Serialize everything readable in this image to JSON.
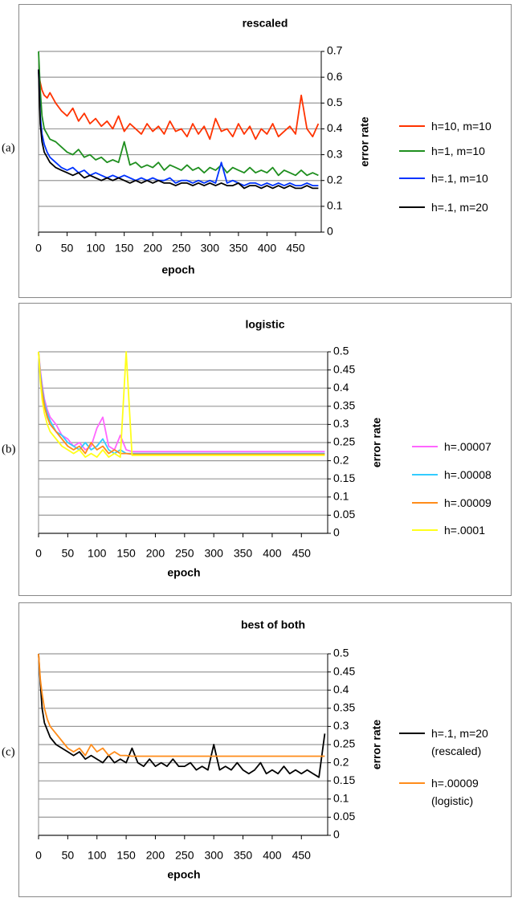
{
  "chart_data": [
    {
      "type": "line",
      "panel_label": "(a)",
      "title": "rescaled",
      "x_label": "epoch",
      "y_label": "error rate",
      "x": [
        0,
        3,
        6,
        10,
        15,
        20,
        30,
        40,
        50,
        60,
        70,
        80,
        90,
        100,
        110,
        120,
        130,
        140,
        150,
        160,
        170,
        180,
        190,
        200,
        210,
        220,
        230,
        240,
        250,
        260,
        270,
        280,
        290,
        300,
        310,
        320,
        330,
        340,
        350,
        360,
        370,
        380,
        390,
        400,
        410,
        420,
        430,
        440,
        450,
        460,
        470,
        480,
        490
      ],
      "xlim": [
        0,
        495
      ],
      "xticks": [
        0,
        50,
        100,
        150,
        200,
        250,
        300,
        350,
        400,
        450
      ],
      "ylim": [
        0,
        0.7
      ],
      "yticks": [
        0,
        0.1,
        0.2,
        0.3,
        0.4,
        0.5,
        0.6,
        0.7
      ],
      "grid": true,
      "series": [
        {
          "name": "h=10, m=10",
          "color": "#ff3300",
          "values": [
            0.62,
            0.58,
            0.55,
            0.53,
            0.52,
            0.54,
            0.5,
            0.47,
            0.45,
            0.48,
            0.43,
            0.46,
            0.42,
            0.44,
            0.41,
            0.43,
            0.4,
            0.45,
            0.39,
            0.42,
            0.4,
            0.38,
            0.42,
            0.39,
            0.41,
            0.38,
            0.43,
            0.39,
            0.4,
            0.37,
            0.42,
            0.38,
            0.41,
            0.36,
            0.44,
            0.39,
            0.4,
            0.37,
            0.42,
            0.38,
            0.41,
            0.36,
            0.4,
            0.38,
            0.42,
            0.37,
            0.39,
            0.41,
            0.38,
            0.53,
            0.4,
            0.37,
            0.42
          ]
        },
        {
          "name": "h=1, m=10",
          "color": "#1f8f1f",
          "values": [
            0.7,
            0.55,
            0.45,
            0.4,
            0.38,
            0.36,
            0.35,
            0.33,
            0.31,
            0.3,
            0.32,
            0.29,
            0.3,
            0.28,
            0.29,
            0.27,
            0.28,
            0.27,
            0.35,
            0.26,
            0.27,
            0.25,
            0.26,
            0.25,
            0.27,
            0.24,
            0.26,
            0.25,
            0.24,
            0.26,
            0.24,
            0.25,
            0.23,
            0.25,
            0.24,
            0.26,
            0.23,
            0.25,
            0.24,
            0.23,
            0.25,
            0.23,
            0.24,
            0.23,
            0.25,
            0.22,
            0.24,
            0.23,
            0.22,
            0.24,
            0.22,
            0.23,
            0.22
          ]
        },
        {
          "name": "h=.1, m=10",
          "color": "#0033ff",
          "values": [
            0.63,
            0.45,
            0.38,
            0.34,
            0.31,
            0.29,
            0.27,
            0.25,
            0.24,
            0.25,
            0.23,
            0.24,
            0.22,
            0.23,
            0.22,
            0.21,
            0.22,
            0.21,
            0.22,
            0.21,
            0.2,
            0.21,
            0.2,
            0.21,
            0.2,
            0.2,
            0.21,
            0.19,
            0.2,
            0.2,
            0.19,
            0.2,
            0.19,
            0.2,
            0.19,
            0.27,
            0.19,
            0.2,
            0.19,
            0.18,
            0.19,
            0.19,
            0.18,
            0.19,
            0.18,
            0.19,
            0.18,
            0.19,
            0.18,
            0.18,
            0.19,
            0.18,
            0.18
          ]
        },
        {
          "name": "h=.1, m=20",
          "color": "#000000",
          "values": [
            0.63,
            0.42,
            0.35,
            0.31,
            0.29,
            0.27,
            0.25,
            0.24,
            0.23,
            0.22,
            0.23,
            0.21,
            0.22,
            0.21,
            0.2,
            0.21,
            0.2,
            0.21,
            0.2,
            0.19,
            0.2,
            0.19,
            0.2,
            0.19,
            0.2,
            0.19,
            0.19,
            0.18,
            0.19,
            0.19,
            0.18,
            0.19,
            0.18,
            0.19,
            0.18,
            0.19,
            0.18,
            0.18,
            0.19,
            0.17,
            0.18,
            0.18,
            0.17,
            0.18,
            0.17,
            0.18,
            0.17,
            0.18,
            0.17,
            0.17,
            0.18,
            0.17,
            0.17
          ]
        }
      ]
    },
    {
      "type": "line",
      "panel_label": "(b)",
      "title": "logistic",
      "x_label": "epoch",
      "y_label": "error rate",
      "x": [
        0,
        3,
        6,
        10,
        15,
        20,
        30,
        40,
        50,
        60,
        70,
        80,
        90,
        100,
        110,
        120,
        130,
        140,
        150,
        160,
        170,
        180,
        190,
        200,
        210,
        220,
        230,
        240,
        250,
        260,
        270,
        280,
        290,
        300,
        310,
        320,
        330,
        340,
        350,
        360,
        370,
        380,
        390,
        400,
        410,
        420,
        430,
        440,
        450,
        460,
        470,
        480,
        490
      ],
      "xlim": [
        0,
        495
      ],
      "xticks": [
        0,
        50,
        100,
        150,
        200,
        250,
        300,
        350,
        400,
        450
      ],
      "ylim": [
        0,
        0.5
      ],
      "yticks": [
        0,
        0.05,
        0.1,
        0.15,
        0.2,
        0.25,
        0.3,
        0.35,
        0.4,
        0.45,
        0.5
      ],
      "grid": true,
      "series": [
        {
          "name": "h=.00007",
          "color": "#ff66ff",
          "values": [
            0.5,
            0.45,
            0.41,
            0.37,
            0.34,
            0.32,
            0.3,
            0.27,
            0.26,
            0.24,
            0.25,
            0.23,
            0.24,
            0.29,
            0.32,
            0.24,
            0.23,
            0.27,
            0.23,
            0.225,
            0.225,
            0.225,
            0.225,
            0.225,
            0.225,
            0.225,
            0.225,
            0.225,
            0.225,
            0.225,
            0.225,
            0.225,
            0.225,
            0.225,
            0.225,
            0.225,
            0.225,
            0.225,
            0.225,
            0.225,
            0.225,
            0.225,
            0.225,
            0.225,
            0.225,
            0.225,
            0.225,
            0.225,
            0.225,
            0.225,
            0.225,
            0.225,
            0.225
          ]
        },
        {
          "name": "h=.00008",
          "color": "#33ccff",
          "values": [
            0.5,
            0.44,
            0.4,
            0.36,
            0.33,
            0.31,
            0.28,
            0.27,
            0.25,
            0.24,
            0.23,
            0.25,
            0.23,
            0.24,
            0.26,
            0.23,
            0.22,
            0.23,
            0.22,
            0.22,
            0.22,
            0.22,
            0.22,
            0.22,
            0.22,
            0.22,
            0.22,
            0.22,
            0.22,
            0.22,
            0.22,
            0.22,
            0.22,
            0.22,
            0.22,
            0.22,
            0.22,
            0.22,
            0.22,
            0.22,
            0.22,
            0.22,
            0.22,
            0.22,
            0.22,
            0.22,
            0.22,
            0.22,
            0.22,
            0.22,
            0.22,
            0.22,
            0.22
          ]
        },
        {
          "name": "h=.00009",
          "color": "#ff8c1a",
          "values": [
            0.5,
            0.43,
            0.39,
            0.35,
            0.32,
            0.3,
            0.28,
            0.26,
            0.24,
            0.23,
            0.24,
            0.22,
            0.25,
            0.23,
            0.24,
            0.22,
            0.23,
            0.22,
            0.22,
            0.218,
            0.218,
            0.218,
            0.218,
            0.218,
            0.218,
            0.218,
            0.218,
            0.218,
            0.218,
            0.218,
            0.218,
            0.218,
            0.218,
            0.218,
            0.218,
            0.218,
            0.218,
            0.218,
            0.218,
            0.218,
            0.218,
            0.218,
            0.218,
            0.218,
            0.218,
            0.218,
            0.218,
            0.218,
            0.218,
            0.218,
            0.218,
            0.218,
            0.218
          ]
        },
        {
          "name": "h=.0001",
          "color": "#ffff1a",
          "values": [
            0.5,
            0.42,
            0.37,
            0.33,
            0.3,
            0.28,
            0.26,
            0.24,
            0.23,
            0.22,
            0.23,
            0.21,
            0.22,
            0.21,
            0.23,
            0.21,
            0.22,
            0.21,
            0.5,
            0.215,
            0.215,
            0.215,
            0.215,
            0.215,
            0.215,
            0.215,
            0.215,
            0.215,
            0.215,
            0.215,
            0.215,
            0.215,
            0.215,
            0.215,
            0.215,
            0.215,
            0.215,
            0.215,
            0.215,
            0.215,
            0.215,
            0.215,
            0.215,
            0.215,
            0.215,
            0.215,
            0.215,
            0.215,
            0.215,
            0.215,
            0.215,
            0.215,
            0.215
          ]
        }
      ]
    },
    {
      "type": "line",
      "panel_label": "(c)",
      "title": "best of both",
      "x_label": "epoch",
      "y_label": "error rate",
      "x": [
        0,
        3,
        6,
        10,
        15,
        20,
        30,
        40,
        50,
        60,
        70,
        80,
        90,
        100,
        110,
        120,
        130,
        140,
        150,
        160,
        170,
        180,
        190,
        200,
        210,
        220,
        230,
        240,
        250,
        260,
        270,
        280,
        290,
        300,
        310,
        320,
        330,
        340,
        350,
        360,
        370,
        380,
        390,
        400,
        410,
        420,
        430,
        440,
        450,
        460,
        470,
        480,
        490
      ],
      "xlim": [
        0,
        495
      ],
      "xticks": [
        0,
        50,
        100,
        150,
        200,
        250,
        300,
        350,
        400,
        450
      ],
      "ylim": [
        0,
        0.5
      ],
      "yticks": [
        0,
        0.05,
        0.1,
        0.15,
        0.2,
        0.25,
        0.3,
        0.35,
        0.4,
        0.45,
        0.5
      ],
      "grid": true,
      "series": [
        {
          "name": "h=.1, m=20\n(rescaled)",
          "color": "#000000",
          "values": [
            0.5,
            0.42,
            0.35,
            0.31,
            0.29,
            0.27,
            0.25,
            0.24,
            0.23,
            0.22,
            0.23,
            0.21,
            0.22,
            0.21,
            0.2,
            0.22,
            0.2,
            0.21,
            0.2,
            0.24,
            0.2,
            0.19,
            0.21,
            0.19,
            0.2,
            0.19,
            0.21,
            0.19,
            0.19,
            0.2,
            0.18,
            0.19,
            0.18,
            0.25,
            0.18,
            0.19,
            0.18,
            0.2,
            0.18,
            0.17,
            0.18,
            0.2,
            0.17,
            0.18,
            0.17,
            0.19,
            0.17,
            0.18,
            0.17,
            0.18,
            0.17,
            0.16,
            0.28
          ]
        },
        {
          "name": "h=.00009\n(logistic)",
          "color": "#ff8c1a",
          "values": [
            0.5,
            0.43,
            0.39,
            0.35,
            0.32,
            0.3,
            0.28,
            0.26,
            0.24,
            0.23,
            0.24,
            0.22,
            0.25,
            0.23,
            0.24,
            0.22,
            0.23,
            0.22,
            0.22,
            0.218,
            0.218,
            0.218,
            0.218,
            0.218,
            0.218,
            0.218,
            0.218,
            0.218,
            0.218,
            0.218,
            0.218,
            0.218,
            0.218,
            0.218,
            0.218,
            0.218,
            0.218,
            0.218,
            0.218,
            0.218,
            0.218,
            0.218,
            0.218,
            0.218,
            0.218,
            0.218,
            0.218,
            0.218,
            0.218,
            0.218,
            0.218,
            0.218,
            0.218
          ]
        }
      ]
    }
  ]
}
